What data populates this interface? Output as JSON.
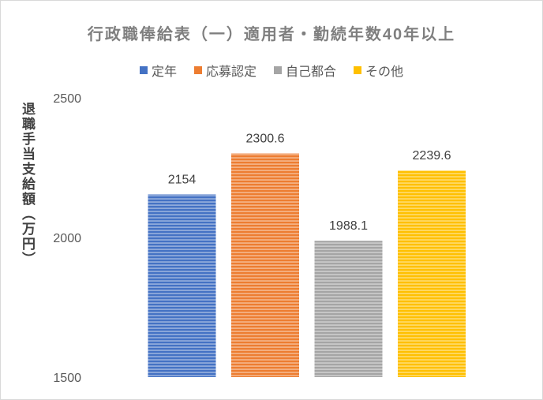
{
  "chart_data": {
    "type": "bar",
    "title": "行政職俸給表（一）適用者・勤続年数40年以上",
    "ylabel": "退職手当支給額（万円）",
    "xlabel": "",
    "categories": [
      "定年",
      "応募認定",
      "自己都合",
      "その他"
    ],
    "values": [
      2154,
      2300.6,
      1988.1,
      2239.6
    ],
    "data_labels": [
      "2154",
      "2300.6",
      "1988.1",
      "2239.6"
    ],
    "colors": [
      "#4472c4",
      "#ed7d31",
      "#a5a5a5",
      "#ffc000"
    ],
    "ylim": [
      1500,
      2500
    ],
    "yticks": [
      "1500",
      "2000",
      "2500"
    ],
    "grid": false,
    "legend_position": "top"
  }
}
